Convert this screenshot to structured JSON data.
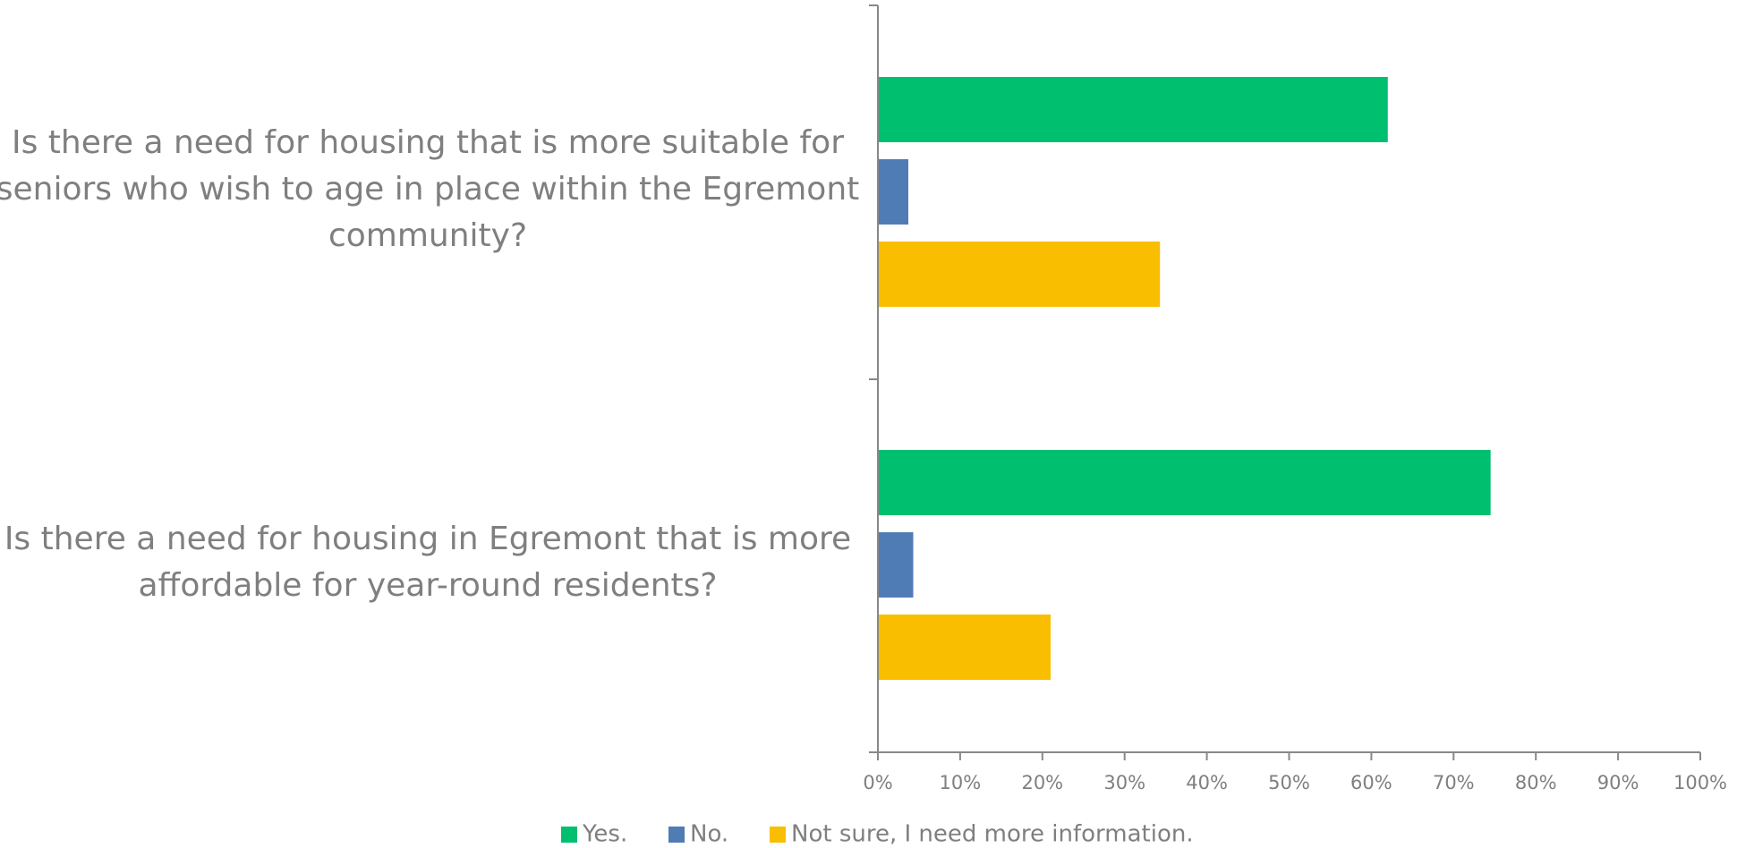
{
  "chart_data": {
    "type": "bar",
    "orientation": "horizontal",
    "categories": [
      "Is there a need for housing that is more suitable for seniors who wish to age in place within the Egremont community?",
      "Is there a need for housing in Egremont that is more affordable for year-round residents?"
    ],
    "category_lines": [
      [
        "Is there a need for housing that is more suitable for",
        "seniors who wish to age in place within the Egremont",
        "community?"
      ],
      [
        "Is there a need for housing in Egremont that is more",
        "affordable for year-round residents?"
      ]
    ],
    "series": [
      {
        "name": "Yes.",
        "color": "#00BF6F",
        "values": [
          62,
          74.5
        ]
      },
      {
        "name": "No.",
        "color": "#507CB6",
        "values": [
          3.7,
          4.3
        ]
      },
      {
        "name": "Not sure, I need more information.",
        "color": "#F9BE00",
        "values": [
          34.3,
          21
        ]
      }
    ],
    "xlim": [
      0,
      100
    ],
    "ticks": [
      "0%",
      "10%",
      "20%",
      "30%",
      "40%",
      "50%",
      "60%",
      "70%",
      "80%",
      "90%",
      "100%"
    ],
    "grid": false,
    "legend_position": "bottom"
  }
}
